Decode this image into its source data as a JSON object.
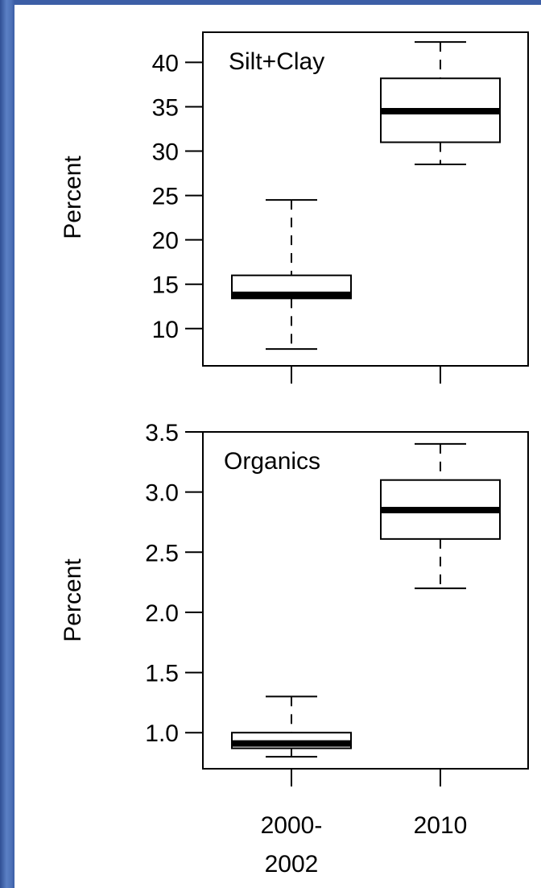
{
  "chart_data": [
    {
      "type": "boxplot",
      "panel_label": "Silt+Clay",
      "ylabel": "Percent",
      "ylim": [
        5.8,
        43.4
      ],
      "yticks": [
        "10",
        "15",
        "20",
        "25",
        "30",
        "35",
        "40"
      ],
      "categories": [
        "2000-\n2002",
        "2010"
      ],
      "boxes": [
        {
          "category": "2000-2002",
          "min": 7.7,
          "q1": 13.4,
          "median": 13.8,
          "q3": 16.0,
          "max": 24.5
        },
        {
          "category": "2010",
          "min": 28.5,
          "q1": 31.0,
          "median": 34.5,
          "q3": 38.2,
          "max": 42.3
        }
      ]
    },
    {
      "type": "boxplot",
      "panel_label": "Organics",
      "ylabel": "Percent",
      "ylim": [
        0.7,
        3.5
      ],
      "yticks": [
        "1.0",
        "1.5",
        "2.0",
        "2.5",
        "3.0",
        "3.5"
      ],
      "categories": [
        "2000-\n2002",
        "2010"
      ],
      "boxes": [
        {
          "category": "2000-2002",
          "min": 0.8,
          "q1": 0.87,
          "median": 0.91,
          "q3": 1.0,
          "max": 1.3
        },
        {
          "category": "2010",
          "min": 2.2,
          "q1": 2.61,
          "median": 2.85,
          "q3": 3.1,
          "max": 3.4
        }
      ]
    }
  ]
}
